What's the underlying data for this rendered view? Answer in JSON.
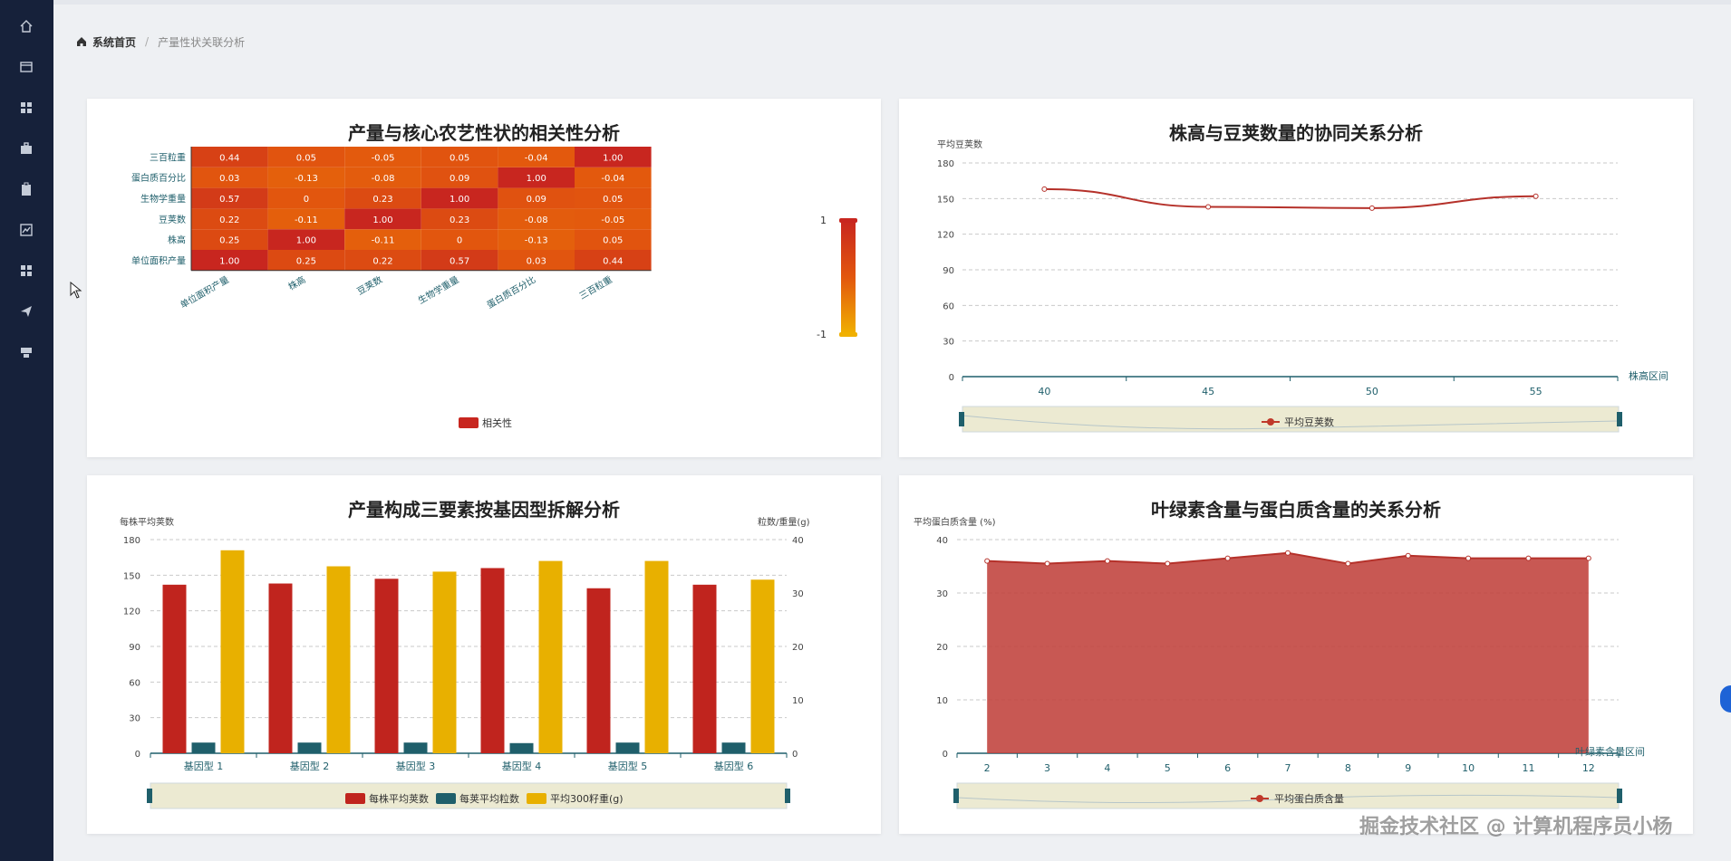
{
  "sidebar": {
    "icons": [
      "home-icon",
      "card-icon",
      "grid-icon",
      "briefcase-icon",
      "clipboard-icon",
      "chart-icon",
      "apps-icon",
      "send-icon",
      "tray-icon"
    ]
  },
  "breadcrumb": {
    "home": "系统首页",
    "separator": "/",
    "current": "产量性状关联分析"
  },
  "heatmap_panel": {
    "title": "产量与核心农艺性状的相关性分析",
    "legend": "相关性",
    "scale_max": "1",
    "scale_min": "-1"
  },
  "line_panel": {
    "title": "株高与豆荚数量的协同关系分析",
    "ylabel": "平均豆荚数",
    "xlabel": "株高区间",
    "legend": "平均豆荚数"
  },
  "bar_panel": {
    "title": "产量构成三要素按基因型拆解分析",
    "ylabel_left": "每株平均荚数",
    "ylabel_right": "粒数/重量(g)"
  },
  "area_panel": {
    "title": "叶绿素含量与蛋白质含量的关系分析",
    "ylabel": "平均蛋白质含量 (%)",
    "xlabel": "叶绿素含量区间",
    "legend": "平均蛋白质含量"
  },
  "watermark": "掘金技术社区 @ 计算机程序员小杨",
  "colors": {
    "sidebar": "#16213a",
    "red": "#c0241e",
    "teal": "#1f5f6b",
    "gold": "#e8b000",
    "heat_high": "#c8261f",
    "heat_low": "#f0a500"
  },
  "chart_data": [
    {
      "type": "heatmap",
      "title": "产量与核心农艺性状的相关性分析",
      "x_categories": [
        "单位面积产量",
        "株高",
        "豆荚数",
        "生物学重量",
        "蛋白质百分比",
        "三百粒重"
      ],
      "y_categories": [
        "单位面积产量",
        "株高",
        "豆荚数",
        "生物学重量",
        "蛋白质百分比",
        "三百粒重"
      ],
      "value_labels": [
        [
          "1.00",
          "0.25",
          "0.22",
          "0.57",
          "0.03",
          "0.44"
        ],
        [
          "0.25",
          "1.00",
          "-0.11",
          "0",
          "-0.13",
          "0.05"
        ],
        [
          "0.22",
          "-0.11",
          "1.00",
          "0.23",
          "-0.08",
          "-0.05"
        ],
        [
          "0.57",
          "0",
          "0.23",
          "1.00",
          "0.09",
          "0.05"
        ],
        [
          "0.03",
          "-0.13",
          "-0.08",
          "0.09",
          "1.00",
          "-0.04"
        ],
        [
          "0.44",
          "0.05",
          "-0.05",
          "0.05",
          "-0.04",
          "1.00"
        ]
      ],
      "range": [
        -1,
        1
      ],
      "legend": [
        "相关性"
      ]
    },
    {
      "type": "line",
      "title": "株高与豆荚数量的协同关系分析",
      "x": [
        "40",
        "45",
        "50",
        "55"
      ],
      "series": [
        {
          "name": "平均豆荚数",
          "values": [
            158,
            143,
            142,
            152
          ]
        }
      ],
      "ylabel": "平均豆荚数",
      "xlabel": "株高区间",
      "ylim": [
        0,
        180
      ],
      "yticks": [
        "0",
        "30",
        "60",
        "90",
        "120",
        "150",
        "180"
      ],
      "grid": true,
      "legend": "bottom"
    },
    {
      "type": "bar",
      "title": "产量构成三要素按基因型拆解分析",
      "categories": [
        "基因型 1",
        "基因型 2",
        "基因型 3",
        "基因型 4",
        "基因型 5",
        "基因型 6"
      ],
      "series": [
        {
          "name": "每株平均荚数",
          "axis": "left",
          "values": [
            142,
            143,
            147,
            156,
            139,
            142
          ]
        },
        {
          "name": "每荚平均粒数",
          "axis": "right",
          "values": [
            2.0,
            2.0,
            2.0,
            1.9,
            2.0,
            2.0
          ]
        },
        {
          "name": "平均300籽重(g)",
          "axis": "right",
          "values": [
            38,
            35,
            34,
            36,
            36,
            32.5
          ]
        }
      ],
      "ylabel": "每株平均荚数",
      "ylabel_right": "粒数/重量(g)",
      "ylim": [
        0,
        180
      ],
      "ylim_right": [
        0,
        40
      ],
      "yticks": [
        "0",
        "30",
        "60",
        "90",
        "120",
        "150",
        "180"
      ],
      "yticks_right": [
        "0",
        "10",
        "20",
        "30",
        "40"
      ],
      "grid": true,
      "legend": "bottom"
    },
    {
      "type": "area",
      "title": "叶绿素含量与蛋白质含量的关系分析",
      "x": [
        "2",
        "3",
        "4",
        "5",
        "6",
        "7",
        "8",
        "9",
        "10",
        "11",
        "12"
      ],
      "series": [
        {
          "name": "平均蛋白质含量",
          "values": [
            36,
            35.5,
            36,
            35.5,
            36.5,
            37.5,
            35.5,
            37,
            36.5,
            36.5,
            36.5
          ]
        }
      ],
      "ylabel": "平均蛋白质含量 (%)",
      "xlabel": "叶绿素含量区间",
      "ylim": [
        0,
        40
      ],
      "yticks": [
        "0",
        "10",
        "20",
        "30",
        "40"
      ],
      "grid": true,
      "legend": "bottom"
    }
  ]
}
